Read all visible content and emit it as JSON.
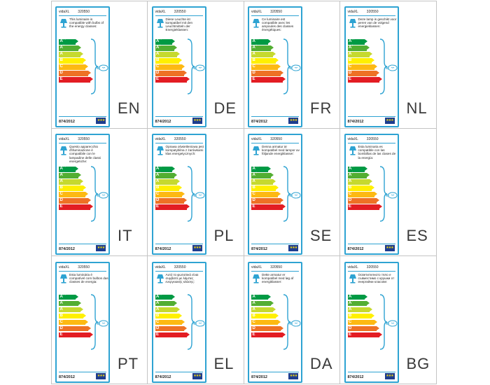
{
  "label_common": {
    "brand": "vidaXL",
    "product_code": "320550",
    "regulation": "874/2012",
    "classes": [
      "A++",
      "A+",
      "A",
      "B",
      "C",
      "D",
      "E"
    ],
    "class_colors": [
      "#009a44",
      "#53ae32",
      "#c6d92f",
      "#fff000",
      "#fdb913",
      "#ee7125",
      "#e31d23"
    ],
    "eu_flag_icon": "eu-flag-icon",
    "lamp_icon": "table-lamp-icon",
    "bulb_icon": "light-bulb-icon"
  },
  "cells": [
    {
      "lang": "EN",
      "text": "This luminaire is compatible with bulbs of the energy classes:"
    },
    {
      "lang": "DE",
      "text": "Diese Leuchte ist kompatibel mit den Leuchtmitteln der Energieklassen:"
    },
    {
      "lang": "FR",
      "text": "Ce luminaire est compatible avec les ampoules des classes énergétiques:"
    },
    {
      "lang": "NL",
      "text": "Deze lamp is geschikt voor peren van de volgend energieklassen:"
    },
    {
      "lang": "IT",
      "text": "Questo apparecchio d'illuminazione è compatibile con le lampadine delle classi energetiche:"
    },
    {
      "lang": "PL",
      "text": "Oprawa oświetleniowa jest kompatybilna z żarówkami klas energetycznych:"
    },
    {
      "lang": "SE",
      "text": "Denna armatur är kompatibel med lampor av följande energiklasser:"
    },
    {
      "lang": "ES",
      "text": "Esta luminaria es compatible con las bombillas de las clases de la energía:"
    },
    {
      "lang": "PT",
      "text": "Esta luminária é compatível com bulbos das classes de energia:"
    },
    {
      "lang": "EL",
      "text": "Αυτό το φωτιστικό είναι συμβατό με λάμπες ενεργειακής κλάσης:"
    },
    {
      "lang": "DA",
      "text": "Dette armatur er kompatibel med løg af energiklasser:"
    },
    {
      "lang": "BG",
      "text": "Осветителното тяло е съвместимо с крушки от енергийни класове:"
    }
  ]
}
